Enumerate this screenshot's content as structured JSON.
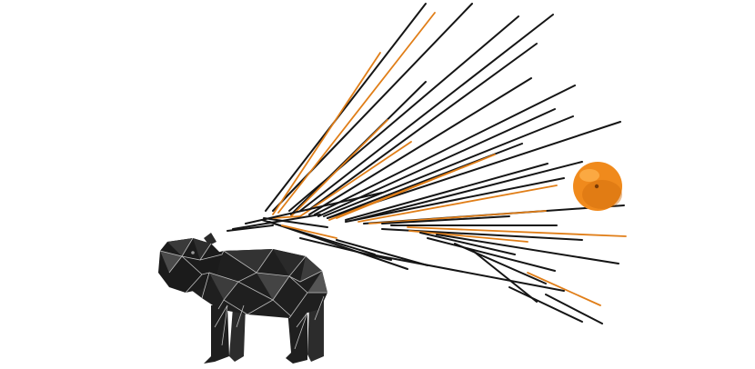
{
  "scene": {
    "description_free": true,
    "subjects": {
      "capybara": {
        "style": "low-poly",
        "facing": "left",
        "colors": {
          "body": "#1f1f1f",
          "shade": "#2c2c2c",
          "highlight": "#555555",
          "edges": "#bdbdbd"
        }
      },
      "orange": {
        "colors": {
          "peel": "#f08a1c",
          "shadow": "#cf6a0c",
          "highlight": "#ffb653",
          "navel": "#7a3b06"
        }
      }
    },
    "lines": {
      "colors": {
        "dark": "#151515",
        "accent": "#e07e18"
      }
    },
    "background": "#ffffff"
  }
}
